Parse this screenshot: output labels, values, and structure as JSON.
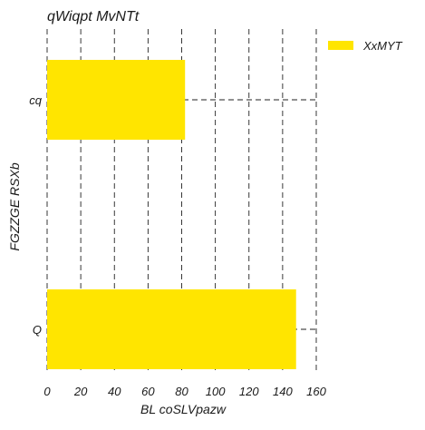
{
  "chart_data": {
    "type": "bar",
    "orientation": "horizontal",
    "title": "qWiqpt MvNTt",
    "xlabel": "BL coSLVpazw",
    "ylabel": "FGZZGE RSXb",
    "categories": [
      "cq",
      "Q"
    ],
    "series": [
      {
        "name": "XxMYT",
        "values": [
          82,
          148
        ]
      }
    ],
    "xlim": [
      0,
      160
    ],
    "xticks": [
      0,
      20,
      40,
      60,
      80,
      100,
      120,
      140,
      160
    ],
    "grid": true,
    "grid_style": "dashed",
    "legend": "top-right",
    "bar_color": "#FFE500"
  }
}
